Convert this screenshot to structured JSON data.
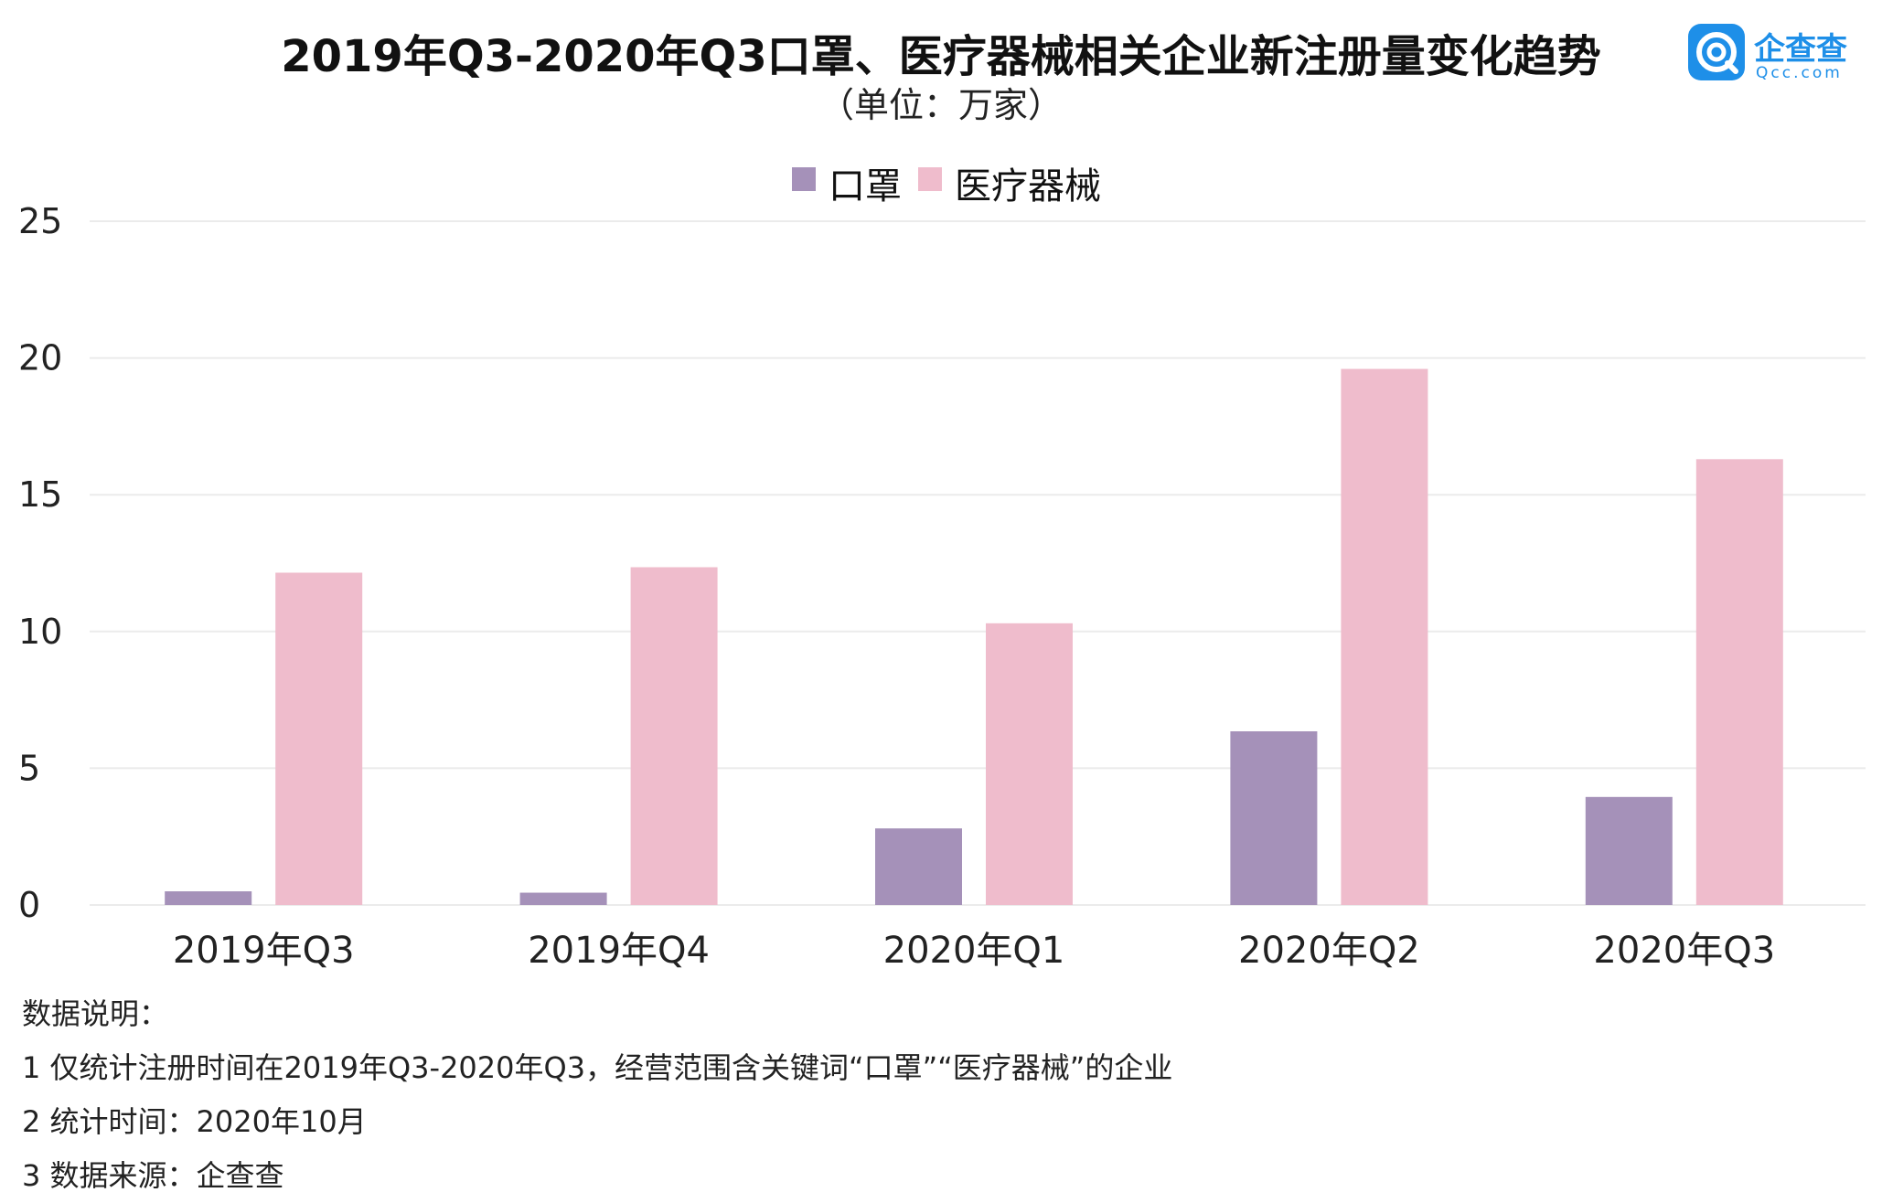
{
  "header": {
    "title": "2019年Q3-2020年Q3口罩、医疗器械相关企业新注册量变化趋势",
    "subtitle": "（单位：万家）"
  },
  "logo": {
    "name": "企查查",
    "domain": "Qcc.com",
    "icon": "qcc-logo-icon",
    "color": "#1e8fe8"
  },
  "chart_data": {
    "type": "bar",
    "title": "2019年Q3-2020年Q3口罩、医疗器械相关企业新注册量变化趋势",
    "subtitle": "（单位：万家）",
    "categories": [
      "2019年Q3",
      "2019年Q4",
      "2020年Q1",
      "2020年Q2",
      "2020年Q3"
    ],
    "series": [
      {
        "name": "口罩",
        "color": "#a591b9",
        "values": [
          0.5,
          0.45,
          2.8,
          6.35,
          3.95
        ]
      },
      {
        "name": "医疗器械",
        "color": "#efbccc",
        "values": [
          12.15,
          12.35,
          10.3,
          19.6,
          16.3
        ]
      }
    ],
    "ylim": [
      0,
      25
    ],
    "yticks": [
      "0",
      "5",
      "10",
      "15",
      "20",
      "25"
    ],
    "xlabel": "",
    "ylabel": "",
    "grid": true,
    "legend_position": "top-center"
  },
  "notes": {
    "heading": "数据说明：",
    "lines": [
      "1 仅统计注册时间在2019年Q3-2020年Q3，经营范围含关键词“口罩”“医疗器械”的企业",
      "2 统计时间：2020年10月",
      "3 数据来源：企查查"
    ]
  }
}
